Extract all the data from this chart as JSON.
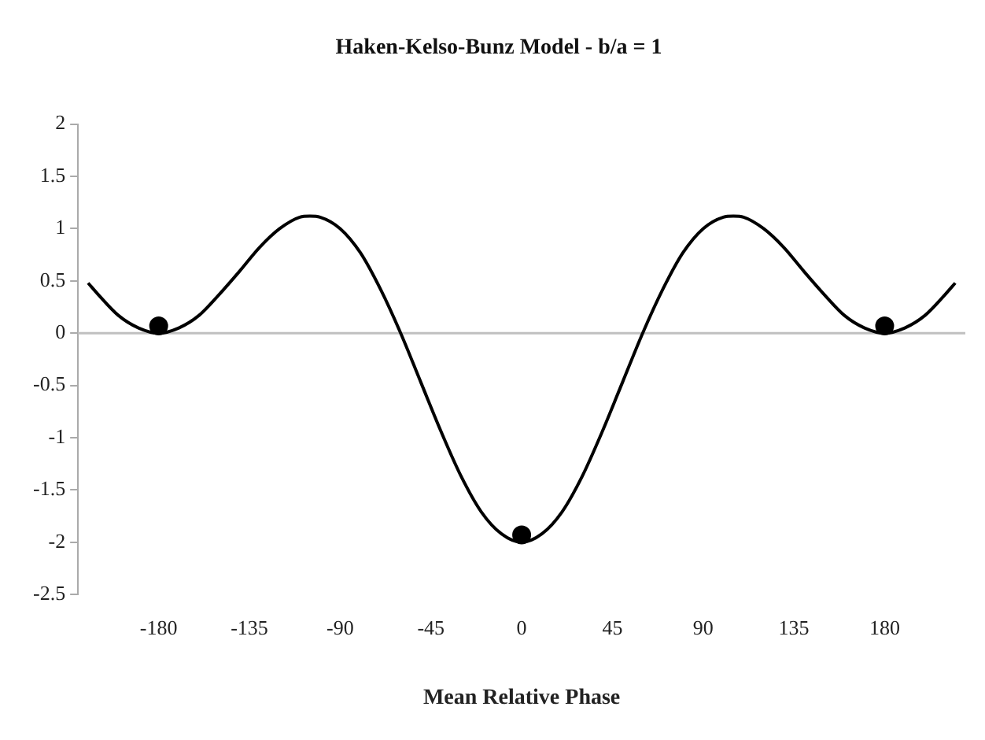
{
  "chart_data": {
    "type": "line",
    "title": "Haken-Kelso-Bunz Model - b/a = 1",
    "xlabel": "Mean Relative Phase",
    "xlim": [
      -220,
      220
    ],
    "xticks": [
      -180,
      -135,
      -90,
      -45,
      0,
      45,
      90,
      135,
      180
    ],
    "ylim": [
      -2.5,
      2
    ],
    "yticks": [
      -2.5,
      -2,
      -1.5,
      -1,
      -0.5,
      0,
      0.5,
      1,
      1.5,
      2
    ],
    "grid": false,
    "legend": false,
    "ref_lines": [
      {
        "axis": "y",
        "value": 0,
        "color": "#c0c0c0"
      }
    ],
    "series": [
      {
        "color": "#000000",
        "marker": "none",
        "x": [
          -215,
          -210,
          -200,
          -190,
          -180,
          -170,
          -160,
          -150,
          -140,
          -130,
          -120,
          -110,
          -105,
          -100,
          -90,
          -80,
          -70,
          -60,
          -50,
          -40,
          -30,
          -20,
          -10,
          0,
          10,
          20,
          30,
          40,
          50,
          60,
          70,
          80,
          90,
          100,
          105,
          110,
          120,
          130,
          140,
          150,
          160,
          170,
          180,
          190,
          200,
          210,
          215
        ],
        "values": [
          0.48,
          0.37,
          0.17,
          0.05,
          0,
          0.05,
          0.17,
          0.37,
          0.59,
          0.82,
          1,
          1.11,
          1.12,
          1.11,
          1,
          0.77,
          0.42,
          0,
          -0.47,
          -0.94,
          -1.37,
          -1.71,
          -1.92,
          -2,
          -1.92,
          -1.71,
          -1.37,
          -0.94,
          -0.47,
          0,
          0.42,
          0.77,
          1,
          1.11,
          1.12,
          1.11,
          1,
          0.82,
          0.59,
          0.37,
          0.17,
          0.05,
          0,
          0.05,
          0.17,
          0.37,
          0.48
        ]
      },
      {
        "type": "scatter",
        "color": "#000000",
        "marker": "circle",
        "x": [
          -180,
          0,
          180
        ],
        "values": [
          0.07,
          -1.93,
          0.07
        ]
      }
    ]
  }
}
